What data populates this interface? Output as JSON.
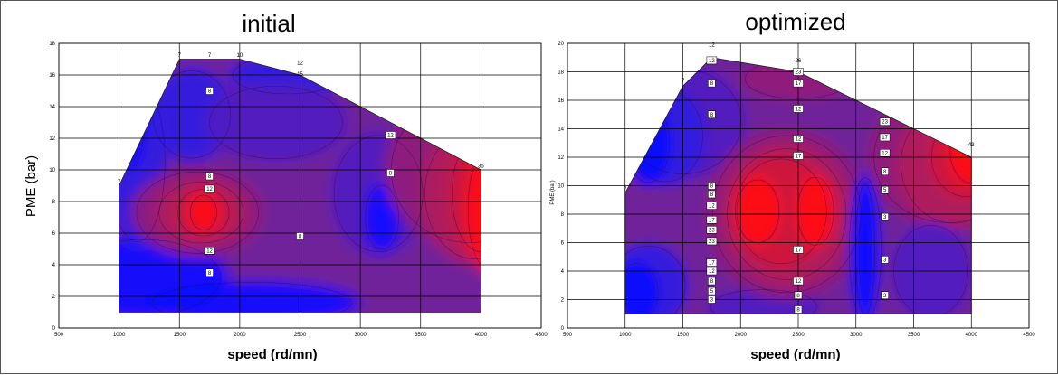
{
  "chart_data": [
    {
      "type": "heatmap",
      "subtype": "contour",
      "title": "initial",
      "xlabel": "speed (rd/mn)",
      "ylabel": "PME (bar)",
      "xlim": [
        500,
        4500
      ],
      "ylim": [
        0,
        18
      ],
      "xticks": [
        500,
        1000,
        1500,
        2000,
        2500,
        3000,
        3500,
        4000,
        4500
      ],
      "yticks": [
        0,
        2,
        4,
        6,
        8,
        10,
        12,
        14,
        16,
        18
      ],
      "grid": true,
      "colorscale": [
        "#1010ff",
        "#3020e0",
        "#5020c0",
        "#70209a",
        "#901c7a",
        "#b01a5c",
        "#d0183a",
        "#ff1010"
      ],
      "boundary": [
        [
          1000,
          1
        ],
        [
          1000,
          9
        ],
        [
          1500,
          17
        ],
        [
          2000,
          17
        ],
        [
          2500,
          16
        ],
        [
          3500,
          12
        ],
        [
          4000,
          10
        ],
        [
          4000,
          1
        ]
      ],
      "boundary_labels": [
        {
          "x": 1000,
          "y": 9.1,
          "text": "7"
        },
        {
          "x": 1500,
          "y": 17.1,
          "text": "7"
        },
        {
          "x": 1750,
          "y": 17.1,
          "text": "7"
        },
        {
          "x": 2000,
          "y": 17.1,
          "text": "10"
        },
        {
          "x": 2500,
          "y": 16.6,
          "text": "12"
        },
        {
          "x": 2500,
          "y": 15.9,
          "text": "15"
        },
        {
          "x": 4000,
          "y": 10.1,
          "text": "35"
        }
      ],
      "contour_labels": [
        {
          "x": 1750,
          "y": 15,
          "text": "8"
        },
        {
          "x": 1750,
          "y": 9.6,
          "text": "8"
        },
        {
          "x": 1750,
          "y": 8.8,
          "text": "12"
        },
        {
          "x": 1750,
          "y": 4.9,
          "text": "12"
        },
        {
          "x": 1750,
          "y": 3.5,
          "text": "8"
        },
        {
          "x": 2500,
          "y": 5.8,
          "text": "8"
        },
        {
          "x": 3250,
          "y": 12.2,
          "text": "12"
        },
        {
          "x": 3250,
          "y": 9.8,
          "text": "8"
        }
      ]
    },
    {
      "type": "heatmap",
      "subtype": "contour",
      "title": "optimized",
      "xlabel": "speed (rd/mn)",
      "ylabel": "PME (bar)",
      "xlim": [
        500,
        4500
      ],
      "ylim": [
        0,
        20
      ],
      "xticks": [
        500,
        1000,
        1500,
        2000,
        2500,
        3000,
        3500,
        4000,
        4500
      ],
      "yticks": [
        0,
        2,
        4,
        6,
        8,
        10,
        12,
        14,
        16,
        18,
        20
      ],
      "grid": true,
      "colorscale": [
        "#1010ff",
        "#3020e0",
        "#5020c0",
        "#70209a",
        "#901c7a",
        "#b01a5c",
        "#d0183a",
        "#ff1010"
      ],
      "boundary": [
        [
          1000,
          1
        ],
        [
          1000,
          9.5
        ],
        [
          1500,
          17
        ],
        [
          1750,
          19
        ],
        [
          2500,
          18
        ],
        [
          4000,
          12
        ],
        [
          4000,
          1
        ]
      ],
      "boundary_labels": [
        {
          "x": 1000,
          "y": 9.6,
          "text": "7"
        },
        {
          "x": 1500,
          "y": 17.2,
          "text": "7"
        },
        {
          "x": 1750,
          "y": 19.7,
          "text": "12"
        },
        {
          "x": 2500,
          "y": 18.6,
          "text": "26"
        },
        {
          "x": 4000,
          "y": 12.7,
          "text": "43"
        }
      ],
      "contour_labels": [
        {
          "x": 1750,
          "y": 18.8,
          "text": "12"
        },
        {
          "x": 1750,
          "y": 17.2,
          "text": "8"
        },
        {
          "x": 1750,
          "y": 15,
          "text": "8"
        },
        {
          "x": 1750,
          "y": 10,
          "text": "8"
        },
        {
          "x": 1750,
          "y": 9.4,
          "text": "8"
        },
        {
          "x": 1750,
          "y": 8.6,
          "text": "12"
        },
        {
          "x": 1750,
          "y": 7.6,
          "text": "17"
        },
        {
          "x": 1750,
          "y": 6.9,
          "text": "23"
        },
        {
          "x": 1750,
          "y": 6.1,
          "text": "23"
        },
        {
          "x": 1750,
          "y": 4.6,
          "text": "17"
        },
        {
          "x": 1750,
          "y": 4.0,
          "text": "12"
        },
        {
          "x": 1750,
          "y": 3.3,
          "text": "8"
        },
        {
          "x": 1750,
          "y": 2.6,
          "text": "5"
        },
        {
          "x": 1750,
          "y": 2.0,
          "text": "3"
        },
        {
          "x": 2500,
          "y": 18.0,
          "text": "23"
        },
        {
          "x": 2500,
          "y": 17.2,
          "text": "17"
        },
        {
          "x": 2500,
          "y": 15.4,
          "text": "12"
        },
        {
          "x": 2500,
          "y": 13.3,
          "text": "12"
        },
        {
          "x": 2500,
          "y": 12.1,
          "text": "17"
        },
        {
          "x": 2500,
          "y": 5.5,
          "text": "17"
        },
        {
          "x": 2500,
          "y": 3.3,
          "text": "12"
        },
        {
          "x": 2500,
          "y": 2.3,
          "text": "8"
        },
        {
          "x": 2500,
          "y": 1.3,
          "text": "8"
        },
        {
          "x": 3250,
          "y": 14.5,
          "text": "23"
        },
        {
          "x": 3250,
          "y": 13.4,
          "text": "17"
        },
        {
          "x": 3250,
          "y": 12.3,
          "text": "12"
        },
        {
          "x": 3250,
          "y": 11.0,
          "text": "8"
        },
        {
          "x": 3250,
          "y": 9.7,
          "text": "5"
        },
        {
          "x": 3250,
          "y": 7.8,
          "text": "3"
        },
        {
          "x": 3250,
          "y": 4.8,
          "text": "3"
        },
        {
          "x": 3250,
          "y": 2.3,
          "text": "3"
        }
      ]
    }
  ]
}
